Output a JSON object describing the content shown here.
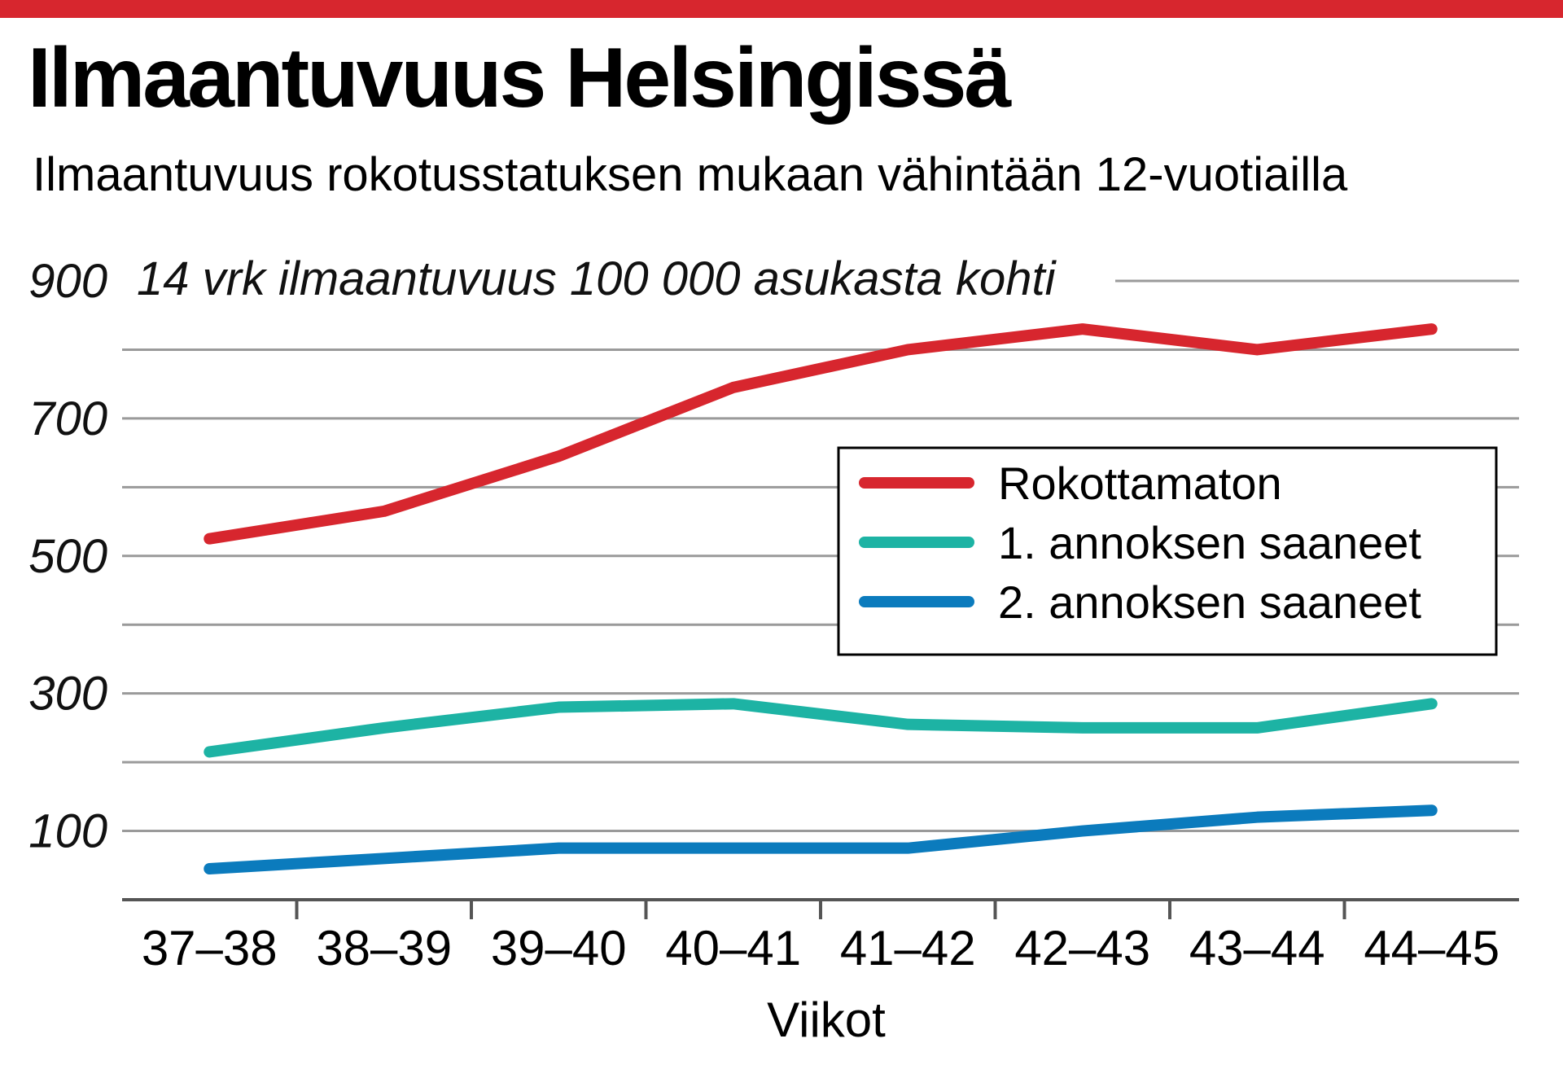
{
  "header": {
    "title": "Ilmaantuvuus Helsingissä",
    "subtitle": "Ilmaantuvuus rokotusstatuksen mukaan vähintään 12-vuotiailla"
  },
  "colors": {
    "accent": "#d7262e",
    "grid": "#9a9a9a"
  },
  "chart_data": {
    "type": "line",
    "title": "Ilmaantuvuus Helsingissä",
    "subtitle": "Ilmaantuvuus rokotusstatuksen mukaan vähintään 12-vuotiailla",
    "ylabel": "14 vrk ilmaantuvuus 100 000 asukasta kohti",
    "xlabel": "Viikot",
    "categories": [
      "37–38",
      "38–39",
      "39–40",
      "40–41",
      "41–42",
      "42–43",
      "43–44",
      "44–45"
    ],
    "ylim": [
      0,
      900
    ],
    "yticks": [
      100,
      300,
      500,
      700,
      900
    ],
    "grid": true,
    "legend_position": "right",
    "series": [
      {
        "name": "Rokottamaton",
        "color": "#d7262e",
        "values": [
          525,
          565,
          645,
          745,
          800,
          830,
          800,
          830
        ]
      },
      {
        "name": "1. annoksen saaneet",
        "color": "#1db3a4",
        "values": [
          215,
          250,
          280,
          285,
          255,
          250,
          250,
          285
        ]
      },
      {
        "name": "2. annoksen saaneet",
        "color": "#0b7bbd",
        "values": [
          45,
          60,
          75,
          75,
          75,
          100,
          120,
          130
        ]
      }
    ]
  }
}
